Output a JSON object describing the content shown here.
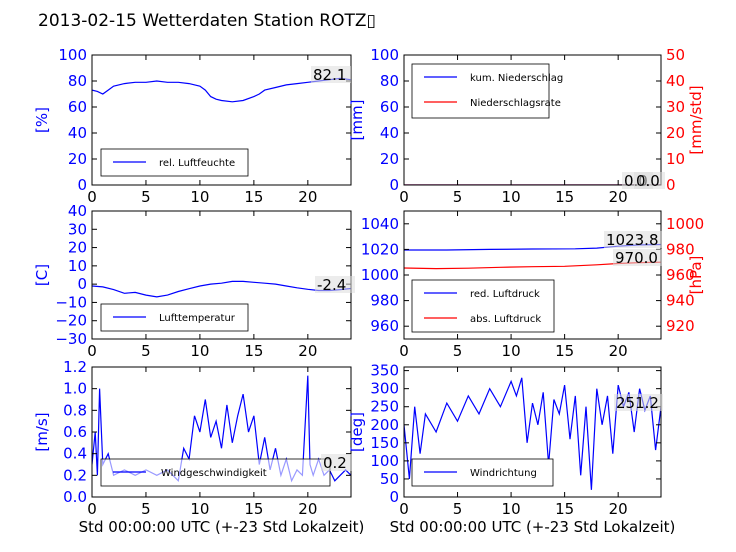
{
  "title": "2013-02-15 Wetterdaten Station ROTZ▯",
  "colors": {
    "blue": "#0000ff",
    "red": "#ff0000",
    "light_blue": "#7777ff",
    "black": "#000000"
  },
  "chart_data": [
    {
      "id": "humidity",
      "type": "line",
      "xlim": [
        0,
        24
      ],
      "xticks": [
        "0",
        "5",
        "10",
        "15",
        "20"
      ],
      "ylim": [
        0,
        100
      ],
      "yticks": [
        "0",
        "20",
        "40",
        "60",
        "80",
        "100"
      ],
      "ylabel": "[%]",
      "legend": [
        "rel. Luftfeuchte"
      ],
      "legend_position": "lower-left",
      "annotation": "82.1",
      "series": [
        {
          "name": "rel. Luftfeuchte",
          "color": "blue",
          "x": [
            0,
            0.5,
            1,
            1.5,
            2,
            3,
            4,
            5,
            6,
            7,
            8,
            9,
            10,
            10.5,
            11,
            11.5,
            12,
            13,
            14,
            15,
            15.5,
            16,
            17,
            18,
            19,
            20,
            21,
            22,
            23,
            24
          ],
          "y": [
            73,
            72,
            70,
            73,
            76,
            78,
            79,
            79,
            80,
            79,
            79,
            78,
            76,
            73,
            68,
            66,
            65,
            64,
            65,
            68,
            70,
            73,
            75,
            77,
            78,
            79,
            80,
            81,
            82,
            81
          ]
        }
      ]
    },
    {
      "id": "precipitation",
      "type": "line",
      "xlim": [
        0,
        24
      ],
      "xticks": [
        "0",
        "5",
        "10",
        "15",
        "20"
      ],
      "ylim": [
        0,
        100
      ],
      "yticks": [
        "0",
        "20",
        "40",
        "60",
        "80",
        "100"
      ],
      "ylabel": "[mm]",
      "y2lim": [
        0,
        50
      ],
      "y2ticks": [
        "0",
        "10",
        "20",
        "30",
        "40",
        "50"
      ],
      "y2label": "[mm/std]",
      "legend": [
        "kum. Niederschlag",
        "Niederschlagsrate"
      ],
      "legend_position": "top-left",
      "annotations": [
        "0.0",
        "0.0"
      ],
      "series": [
        {
          "name": "kum. Niederschlag",
          "color": "blue",
          "axis": "left",
          "x": [
            0,
            24
          ],
          "y": [
            0,
            0
          ]
        },
        {
          "name": "Niederschlagsrate",
          "color": "red",
          "axis": "right",
          "x": [
            0,
            24
          ],
          "y": [
            0,
            0
          ]
        }
      ]
    },
    {
      "id": "temperature",
      "type": "line",
      "xlim": [
        0,
        24
      ],
      "xticks": [
        "0",
        "5",
        "10",
        "15",
        "20"
      ],
      "ylim": [
        -30,
        40
      ],
      "yticks": [
        "−30",
        "−20",
        "−10",
        "0",
        "10",
        "20",
        "30",
        "40"
      ],
      "ylabel": "[C]",
      "legend": [
        "Lufttemperatur"
      ],
      "legend_position": "lower-left",
      "annotation": "-2.4",
      "series": [
        {
          "name": "Lufttemperatur",
          "color": "blue",
          "x": [
            0,
            1,
            2,
            3,
            4,
            5,
            6,
            7,
            8,
            9,
            10,
            11,
            12,
            13,
            14,
            15,
            16,
            17,
            18,
            19,
            20,
            21,
            22,
            23,
            24
          ],
          "y": [
            -1,
            -1.5,
            -3,
            -5,
            -4.5,
            -6,
            -7,
            -6,
            -4,
            -2.5,
            -1,
            0,
            0.5,
            1.5,
            1.5,
            1,
            0.5,
            0,
            -1,
            -2,
            -2.8,
            -3.5,
            -3.5,
            -3,
            -2.4
          ]
        }
      ]
    },
    {
      "id": "pressure",
      "type": "line",
      "xlim": [
        0,
        24
      ],
      "xticks": [
        "0",
        "5",
        "10",
        "15",
        "20"
      ],
      "ylim": [
        950,
        1050
      ],
      "yticks": [
        "960",
        "980",
        "1000",
        "1020",
        "1040"
      ],
      "y2lim": [
        910,
        1010
      ],
      "y2ticks": [
        "920",
        "940",
        "960",
        "980",
        "1000"
      ],
      "y2label": "[hPa]",
      "legend": [
        "red. Luftdruck",
        "abs. Luftdruck"
      ],
      "legend_position": "lower-left",
      "annotations": [
        "1023.8",
        "970.0"
      ],
      "series": [
        {
          "name": "red. Luftdruck",
          "color": "blue",
          "axis": "left",
          "x": [
            0,
            4,
            8,
            12,
            16,
            18,
            20,
            22,
            24
          ],
          "y": [
            1019.5,
            1019.5,
            1020,
            1020.3,
            1020.5,
            1021,
            1022.5,
            1023.5,
            1023.8
          ]
        },
        {
          "name": "abs. Luftdruck",
          "color": "red",
          "axis": "right",
          "x": [
            0,
            3,
            6,
            9,
            12,
            15,
            18,
            20,
            22,
            24
          ],
          "y": [
            965.5,
            965,
            965.3,
            966,
            966.5,
            966.8,
            968,
            969,
            969.7,
            970
          ]
        }
      ]
    },
    {
      "id": "wind_speed",
      "type": "line",
      "xlim": [
        0,
        24
      ],
      "xticks": [
        "0",
        "5",
        "10",
        "15",
        "20"
      ],
      "xlabel": "Std 00:00:00 UTC (+-23 Std Lokalzeit)",
      "ylim": [
        0,
        1.2
      ],
      "yticks": [
        "0.0",
        "0.2",
        "0.4",
        "0.6",
        "0.8",
        "1.0",
        "1.2"
      ],
      "ylabel": "[m/s]",
      "legend": [
        "Windgeschwindigkeit"
      ],
      "legend_position": "bottom-center",
      "annotation": "0.2",
      "series": [
        {
          "name": "Windgeschwindigkeit",
          "color": "blue",
          "x": [
            0,
            0.3,
            0.5,
            0.7,
            1,
            1.5,
            2,
            3,
            4,
            5,
            6,
            7,
            8,
            8.5,
            9,
            9.5,
            10,
            10.5,
            11,
            11.5,
            12,
            12.5,
            13,
            13.5,
            14,
            14.5,
            15,
            15.5,
            16,
            16.5,
            17,
            17.5,
            18,
            18.5,
            19,
            19.5,
            20,
            20.2,
            20.5,
            21,
            21.5,
            22,
            22.5,
            23,
            23.5,
            24
          ],
          "y": [
            0.3,
            0.6,
            0.2,
            1.0,
            0.3,
            0.4,
            0.2,
            0.25,
            0.2,
            0.25,
            0.2,
            0.25,
            0.15,
            0.45,
            0.35,
            0.75,
            0.6,
            0.9,
            0.55,
            0.7,
            0.45,
            0.85,
            0.5,
            0.75,
            0.95,
            0.6,
            0.75,
            0.3,
            0.55,
            0.25,
            0.45,
            0.2,
            0.35,
            0.15,
            0.25,
            0.2,
            1.12,
            0.3,
            0.2,
            0.35,
            0.2,
            0.25,
            0.15,
            0.2,
            0.25,
            0.2
          ]
        }
      ]
    },
    {
      "id": "wind_direction",
      "type": "line",
      "xlim": [
        0,
        24
      ],
      "xticks": [
        "0",
        "5",
        "10",
        "15",
        "20"
      ],
      "xlabel": "Std 00:00:00 UTC (+-23 Std Lokalzeit)",
      "ylim": [
        0,
        360
      ],
      "yticks": [
        "0",
        "50",
        "100",
        "150",
        "200",
        "250",
        "300",
        "350"
      ],
      "ylabel": "[deg]",
      "legend": [
        "Windrichtung"
      ],
      "legend_position": "bottom-left",
      "annotation": "251.2",
      "series": [
        {
          "name": "Windrichtung",
          "color": "blue",
          "x": [
            0,
            0.5,
            1,
            1.5,
            2,
            3,
            4,
            5,
            6,
            7,
            8,
            9,
            10,
            10.5,
            11,
            11.5,
            12,
            12.5,
            13,
            13.5,
            14,
            14.5,
            15,
            15.5,
            16,
            16.5,
            17,
            17.5,
            18,
            18.5,
            19,
            19.5,
            20,
            20.5,
            21,
            21.5,
            22,
            22.5,
            23,
            23.5,
            24
          ],
          "y": [
            200,
            50,
            250,
            120,
            230,
            180,
            260,
            210,
            280,
            230,
            300,
            250,
            320,
            280,
            330,
            150,
            260,
            200,
            290,
            90,
            270,
            230,
            310,
            160,
            280,
            60,
            250,
            20,
            300,
            200,
            280,
            120,
            310,
            250,
            290,
            180,
            300,
            240,
            280,
            130,
            250
          ]
        }
      ]
    }
  ]
}
